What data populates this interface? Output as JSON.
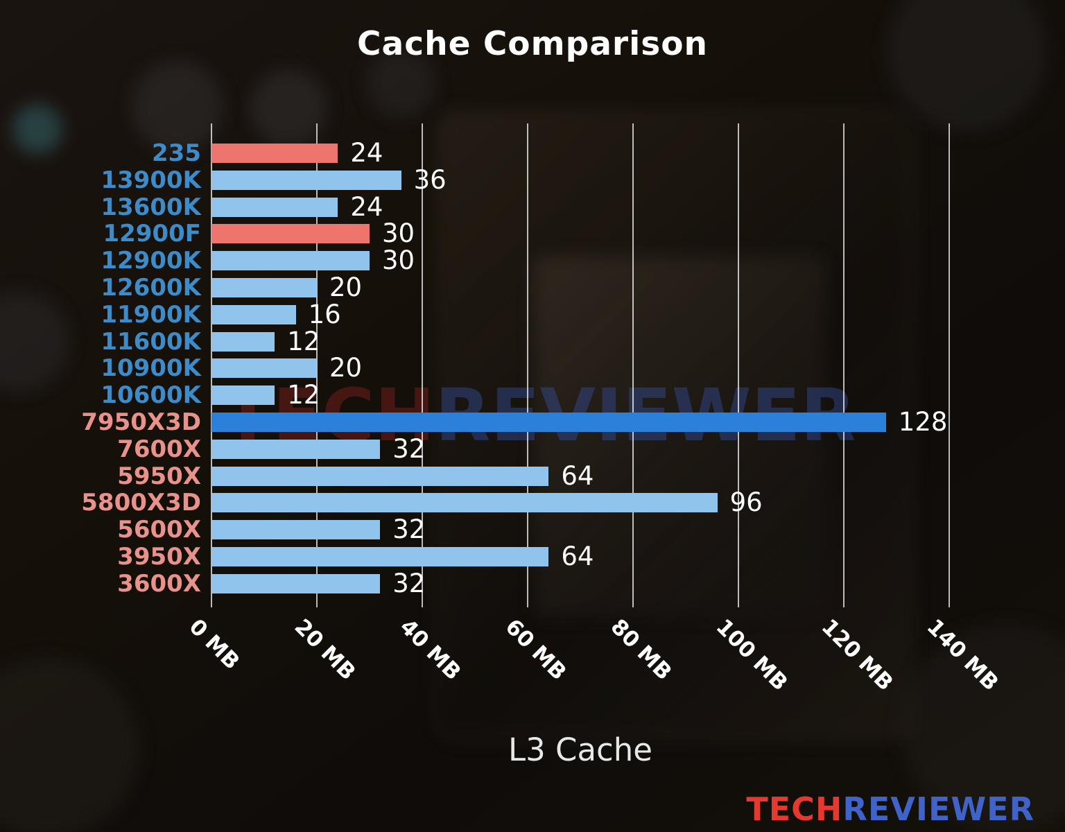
{
  "title": "Cache Comparison",
  "watermark": {
    "part1": "TECH",
    "part2": "REVIEWER",
    "part1_color": "rgba(141,34,34,0.42)",
    "part2_color": "rgba(52,82,164,0.42)"
  },
  "logo": {
    "part1": "TECH",
    "part2": "REVIEWER",
    "part1_color": "#e3392e",
    "part2_color": "#3f63c8"
  },
  "chart_data": {
    "type": "bar",
    "orientation": "horizontal",
    "title": "Cache Comparison",
    "xlabel": "L3 Cache",
    "xlim": [
      0,
      140
    ],
    "x_ticks": [
      "0 MB",
      "20 MB",
      "40 MB",
      "60 MB",
      "80 MB",
      "100 MB",
      "120 MB",
      "140 MB"
    ],
    "grid": true,
    "legend": false,
    "grid_color": "rgba(255,255,255,0.72)",
    "tick_color": "#ffffff",
    "title_color": "#ffffff",
    "xlabel_color": "#e8e8e8",
    "value_label_color": "#ffffff",
    "bars": [
      {
        "label": "235",
        "value": 24,
        "bar_color": "#ee756e",
        "label_color": "#3d8bc9"
      },
      {
        "label": "13900K",
        "value": 36,
        "bar_color": "#90c4ec",
        "label_color": "#3d8bc9"
      },
      {
        "label": "13600K",
        "value": 24,
        "bar_color": "#90c4ec",
        "label_color": "#3d8bc9"
      },
      {
        "label": "12900F",
        "value": 30,
        "bar_color": "#ee756e",
        "label_color": "#3d8bc9"
      },
      {
        "label": "12900K",
        "value": 30,
        "bar_color": "#90c4ec",
        "label_color": "#3d8bc9"
      },
      {
        "label": "12600K",
        "value": 20,
        "bar_color": "#90c4ec",
        "label_color": "#3d8bc9"
      },
      {
        "label": "11900K",
        "value": 16,
        "bar_color": "#90c4ec",
        "label_color": "#3d8bc9"
      },
      {
        "label": "11600K",
        "value": 12,
        "bar_color": "#90c4ec",
        "label_color": "#3d8bc9"
      },
      {
        "label": "10900K",
        "value": 20,
        "bar_color": "#90c4ec",
        "label_color": "#3d8bc9"
      },
      {
        "label": "10600K",
        "value": 12,
        "bar_color": "#90c4ec",
        "label_color": "#3d8bc9"
      },
      {
        "label": "7950X3D",
        "value": 128,
        "bar_color": "#2b80da",
        "label_color": "#e8928b"
      },
      {
        "label": "7600X",
        "value": 32,
        "bar_color": "#90c4ec",
        "label_color": "#e8928b"
      },
      {
        "label": "5950X",
        "value": 64,
        "bar_color": "#90c4ec",
        "label_color": "#e8928b"
      },
      {
        "label": "5800X3D",
        "value": 96,
        "bar_color": "#90c4ec",
        "label_color": "#e8928b"
      },
      {
        "label": "5600X",
        "value": 32,
        "bar_color": "#90c4ec",
        "label_color": "#e8928b"
      },
      {
        "label": "3950X",
        "value": 64,
        "bar_color": "#90c4ec",
        "label_color": "#e8928b"
      },
      {
        "label": "3600X",
        "value": 32,
        "bar_color": "#90c4ec",
        "label_color": "#e8928b"
      }
    ]
  }
}
